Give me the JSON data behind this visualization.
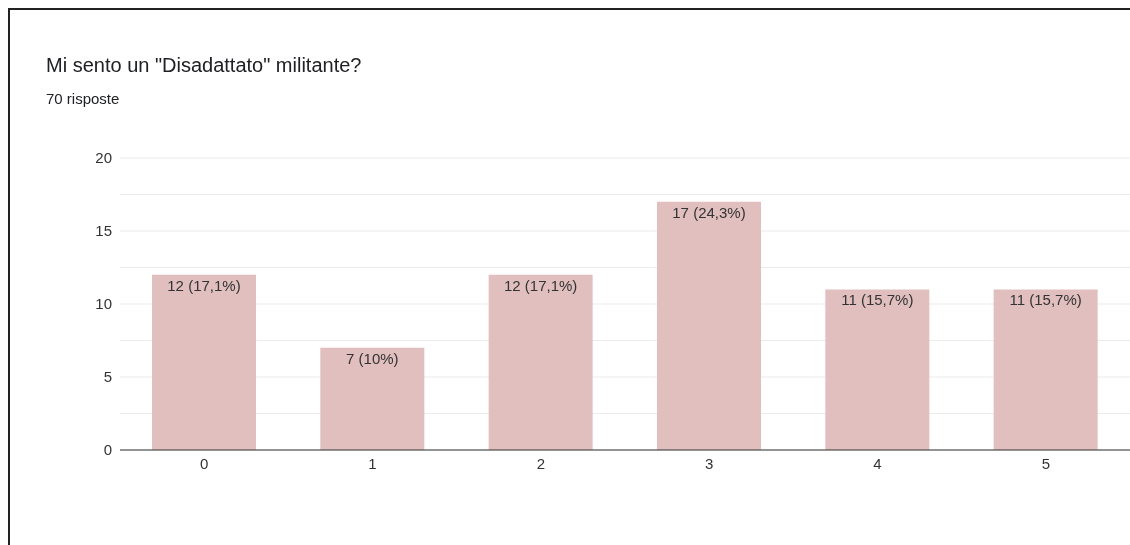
{
  "chart_data": {
    "type": "bar",
    "title": "Mi sento un \"Disadattato\" militante?",
    "subtitle": "70 risposte",
    "categories": [
      "0",
      "1",
      "2",
      "3",
      "4",
      "5"
    ],
    "values": [
      12,
      7,
      12,
      17,
      11,
      11
    ],
    "value_labels": [
      "12 (17,1%)",
      "7 (10%)",
      "12 (17,1%)",
      "17 (24,3%)",
      "11 (15,7%)",
      "11 (15,7%)"
    ],
    "color": "#e0bfbe",
    "ylim": [
      0,
      20
    ],
    "yticks": [
      0,
      {
        "value": 2.5,
        "label": null
      },
      5,
      {
        "value": 7.5,
        "label": null
      },
      10,
      {
        "value": 12.5,
        "label": null
      },
      15,
      {
        "value": 17.5,
        "label": null
      },
      20
    ],
    "grid": "y",
    "legend": false
  }
}
